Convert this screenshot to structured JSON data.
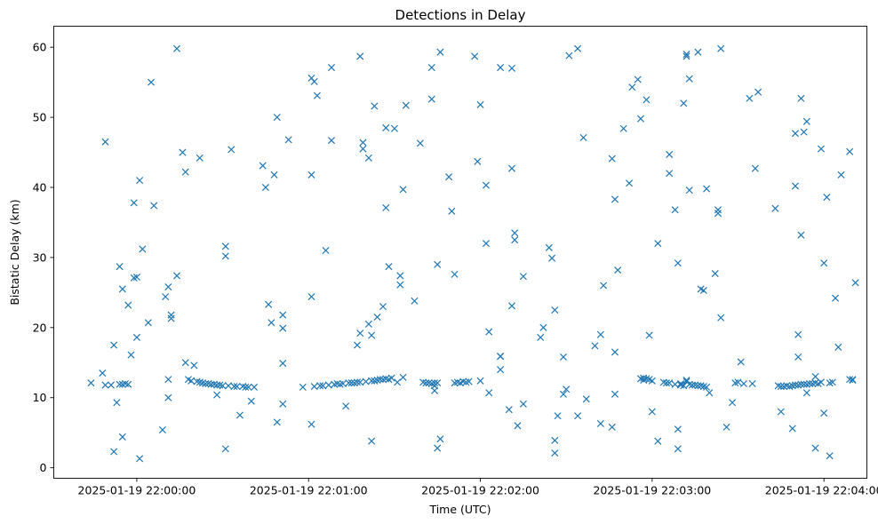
{
  "chart_data": {
    "type": "scatter",
    "title": "Detections in Delay",
    "xlabel": "Time (UTC)",
    "ylabel": "Bistatic Delay (km)",
    "x_unit": "seconds after 2025-01-19 22:00:00 UTC",
    "xlim": [
      -29,
      255
    ],
    "ylim": [
      -1.5,
      63
    ],
    "x_ticks": [
      {
        "value": 0,
        "label": "2025-01-19 22:00:00"
      },
      {
        "value": 60,
        "label": "2025-01-19 22:01:00"
      },
      {
        "value": 120,
        "label": "2025-01-19 22:02:00"
      },
      {
        "value": 180,
        "label": "2025-01-19 22:03:00"
      },
      {
        "value": 240,
        "label": "2025-01-19 22:04:00"
      }
    ],
    "y_ticks": [
      0,
      10,
      20,
      30,
      40,
      50,
      60
    ],
    "marker": "x",
    "color": "#1f77b4",
    "series": [
      {
        "name": "Detections",
        "points": [
          [
            -16,
            12.1
          ],
          [
            -12,
            13.5
          ],
          [
            -11,
            11.8
          ],
          [
            -11,
            46.5
          ],
          [
            -9,
            11.8
          ],
          [
            -8,
            17.5
          ],
          [
            -8,
            2.3
          ],
          [
            -7,
            9.3
          ],
          [
            -6,
            11.9
          ],
          [
            -6,
            28.7
          ],
          [
            -5,
            4.4
          ],
          [
            -5,
            25.5
          ],
          [
            -5,
            11.9
          ],
          [
            -4,
            12.0
          ],
          [
            -3,
            23.2
          ],
          [
            -3,
            11.9
          ],
          [
            -2,
            16.1
          ],
          [
            -1,
            37.8
          ],
          [
            -1,
            27.1
          ],
          [
            0,
            27.2
          ],
          [
            0,
            18.6
          ],
          [
            1,
            41.0
          ],
          [
            1,
            1.3
          ],
          [
            2,
            31.2
          ],
          [
            4,
            20.7
          ],
          [
            5,
            55.0
          ],
          [
            6,
            37.4
          ],
          [
            9,
            5.4
          ],
          [
            10,
            24.4
          ],
          [
            11,
            25.8
          ],
          [
            11,
            12.6
          ],
          [
            11,
            10.0
          ],
          [
            12,
            21.3
          ],
          [
            12,
            21.8
          ],
          [
            14,
            27.4
          ],
          [
            14,
            59.8
          ],
          [
            16,
            45.0
          ],
          [
            17,
            42.2
          ],
          [
            17,
            15.0
          ],
          [
            18,
            12.6
          ],
          [
            19,
            12.4
          ],
          [
            20,
            14.6
          ],
          [
            21,
            12.3
          ],
          [
            22,
            44.2
          ],
          [
            22,
            12.2
          ],
          [
            23,
            12.1
          ],
          [
            24,
            12.0
          ],
          [
            25,
            12.0
          ],
          [
            26,
            11.9
          ],
          [
            27,
            11.9
          ],
          [
            28,
            11.8
          ],
          [
            28,
            10.4
          ],
          [
            29,
            11.8
          ],
          [
            30,
            11.7
          ],
          [
            31,
            2.7
          ],
          [
            31,
            31.6
          ],
          [
            31,
            30.2
          ],
          [
            32,
            11.7
          ],
          [
            33,
            45.4
          ],
          [
            34,
            11.6
          ],
          [
            35,
            11.6
          ],
          [
            36,
            7.5
          ],
          [
            37,
            11.6
          ],
          [
            38,
            11.5
          ],
          [
            39,
            11.5
          ],
          [
            40,
            9.5
          ],
          [
            41,
            11.5
          ],
          [
            44,
            43.1
          ],
          [
            45,
            40.0
          ],
          [
            46,
            23.3
          ],
          [
            47,
            20.7
          ],
          [
            48,
            41.8
          ],
          [
            49,
            50.0
          ],
          [
            49,
            6.5
          ],
          [
            51,
            9.1
          ],
          [
            51,
            21.8
          ],
          [
            51,
            19.9
          ],
          [
            51,
            14.9
          ],
          [
            53,
            46.8
          ],
          [
            58,
            11.5
          ],
          [
            61,
            55.6
          ],
          [
            62,
            55.1
          ],
          [
            61,
            24.4
          ],
          [
            61,
            6.2
          ],
          [
            61,
            41.8
          ],
          [
            62,
            11.6
          ],
          [
            63,
            53.1
          ],
          [
            64,
            11.7
          ],
          [
            65,
            11.7
          ],
          [
            66,
            31.0
          ],
          [
            67,
            11.8
          ],
          [
            68,
            46.7
          ],
          [
            68,
            57.1
          ],
          [
            69,
            11.9
          ],
          [
            70,
            12.0
          ],
          [
            71,
            11.9
          ],
          [
            72,
            12.0
          ],
          [
            73,
            8.8
          ],
          [
            74,
            12.1
          ],
          [
            75,
            12.1
          ],
          [
            76,
            12.1
          ],
          [
            77,
            12.2
          ],
          [
            77,
            17.5
          ],
          [
            78,
            12.2
          ],
          [
            78,
            19.2
          ],
          [
            78,
            58.7
          ],
          [
            79,
            46.4
          ],
          [
            79,
            45.5
          ],
          [
            80,
            12.3
          ],
          [
            81,
            20.5
          ],
          [
            81,
            44.2
          ],
          [
            82,
            12.4
          ],
          [
            82,
            18.9
          ],
          [
            82,
            3.8
          ],
          [
            83,
            12.4
          ],
          [
            83,
            51.6
          ],
          [
            84,
            12.5
          ],
          [
            84,
            21.5
          ],
          [
            85,
            12.6
          ],
          [
            86,
            12.6
          ],
          [
            86,
            23.0
          ],
          [
            87,
            12.7
          ],
          [
            87,
            48.5
          ],
          [
            87,
            37.1
          ],
          [
            88,
            28.7
          ],
          [
            88,
            12.6
          ],
          [
            89,
            12.8
          ],
          [
            90,
            48.4
          ],
          [
            91,
            12.2
          ],
          [
            92,
            26.1
          ],
          [
            92,
            27.4
          ],
          [
            93,
            12.9
          ],
          [
            93,
            39.7
          ],
          [
            94,
            51.7
          ],
          [
            97,
            23.8
          ],
          [
            99,
            46.3
          ],
          [
            100,
            12.2
          ],
          [
            101,
            12.1
          ],
          [
            102,
            12.1
          ],
          [
            103,
            12.0
          ],
          [
            103,
            52.6
          ],
          [
            103,
            57.1
          ],
          [
            104,
            12.1
          ],
          [
            104,
            11.0
          ],
          [
            104,
            11.7
          ],
          [
            105,
            2.8
          ],
          [
            105,
            29.0
          ],
          [
            105,
            12.1
          ],
          [
            106,
            59.3
          ],
          [
            106,
            4.1
          ],
          [
            109,
            41.5
          ],
          [
            110,
            36.6
          ],
          [
            111,
            27.6
          ],
          [
            111,
            12.1
          ],
          [
            112,
            12.2
          ],
          [
            113,
            12.1
          ],
          [
            114,
            12.3
          ],
          [
            115,
            12.2
          ],
          [
            116,
            12.3
          ],
          [
            118,
            58.7
          ],
          [
            119,
            43.7
          ],
          [
            120,
            12.4
          ],
          [
            120,
            51.8
          ],
          [
            122,
            32.0
          ],
          [
            122,
            40.3
          ],
          [
            123,
            10.7
          ],
          [
            123,
            19.4
          ],
          [
            127,
            57.1
          ],
          [
            127,
            15.9
          ],
          [
            127,
            14.0
          ],
          [
            127,
            15.9
          ],
          [
            130,
            8.3
          ],
          [
            131,
            57.0
          ],
          [
            131,
            42.7
          ],
          [
            131,
            23.1
          ],
          [
            132,
            33.5
          ],
          [
            132,
            32.5
          ],
          [
            133,
            6.0
          ],
          [
            135,
            27.3
          ],
          [
            135,
            9.1
          ],
          [
            141,
            18.6
          ],
          [
            142,
            20.0
          ],
          [
            144,
            31.4
          ],
          [
            145,
            29.9
          ],
          [
            146,
            2.1
          ],
          [
            146,
            3.9
          ],
          [
            146,
            22.5
          ],
          [
            147,
            7.4
          ],
          [
            149,
            10.5
          ],
          [
            149,
            15.8
          ],
          [
            150,
            11.2
          ],
          [
            151,
            58.8
          ],
          [
            154,
            59.8
          ],
          [
            154,
            7.4
          ],
          [
            156,
            47.1
          ],
          [
            157,
            9.8
          ],
          [
            160,
            17.4
          ],
          [
            162,
            6.3
          ],
          [
            162,
            19.0
          ],
          [
            163,
            26.0
          ],
          [
            166,
            5.8
          ],
          [
            166,
            44.1
          ],
          [
            167,
            38.3
          ],
          [
            167,
            16.5
          ],
          [
            167,
            10.5
          ],
          [
            168,
            28.2
          ],
          [
            170,
            48.4
          ],
          [
            172,
            40.6
          ],
          [
            173,
            54.3
          ],
          [
            175,
            55.4
          ],
          [
            176,
            12.7
          ],
          [
            176,
            49.8
          ],
          [
            177,
            12.8
          ],
          [
            177,
            12.5
          ],
          [
            178,
            12.7
          ],
          [
            179,
            12.6
          ],
          [
            178,
            52.5
          ],
          [
            179,
            18.9
          ],
          [
            180,
            12.4
          ],
          [
            180,
            8.0
          ],
          [
            182,
            32.0
          ],
          [
            182,
            3.8
          ],
          [
            184,
            12.2
          ],
          [
            185,
            12.1
          ],
          [
            186,
            12.1
          ],
          [
            186,
            42.0
          ],
          [
            186,
            44.7
          ],
          [
            188,
            11.9
          ],
          [
            188,
            36.8
          ],
          [
            189,
            29.2
          ],
          [
            189,
            5.5
          ],
          [
            189,
            2.7
          ],
          [
            190,
            11.8
          ],
          [
            190,
            12.0
          ],
          [
            191,
            52.0
          ],
          [
            191,
            11.7
          ],
          [
            192,
            12.3
          ],
          [
            192,
            12.5
          ],
          [
            192,
            59.0
          ],
          [
            192,
            58.7
          ],
          [
            193,
            11.9
          ],
          [
            193,
            55.5
          ],
          [
            193,
            39.6
          ],
          [
            194,
            11.8
          ],
          [
            195,
            11.8
          ],
          [
            196,
            11.7
          ],
          [
            196,
            59.3
          ],
          [
            197,
            11.7
          ],
          [
            197,
            25.5
          ],
          [
            198,
            25.3
          ],
          [
            198,
            11.6
          ],
          [
            199,
            39.8
          ],
          [
            199,
            11.5
          ],
          [
            200,
            10.7
          ],
          [
            202,
            27.7
          ],
          [
            203,
            36.3
          ],
          [
            203,
            36.8
          ],
          [
            204,
            59.8
          ],
          [
            204,
            21.4
          ],
          [
            206,
            5.8
          ],
          [
            208,
            9.3
          ],
          [
            209,
            12.1
          ],
          [
            210,
            12.2
          ],
          [
            211,
            15.1
          ],
          [
            212,
            12.0
          ],
          [
            214,
            52.7
          ],
          [
            215,
            12.0
          ],
          [
            216,
            42.7
          ],
          [
            217,
            53.6
          ],
          [
            223,
            37.0
          ],
          [
            224,
            11.7
          ],
          [
            225,
            8.0
          ],
          [
            225,
            11.6
          ],
          [
            226,
            11.6
          ],
          [
            227,
            11.7
          ],
          [
            228,
            11.6
          ],
          [
            229,
            11.7
          ],
          [
            229,
            5.6
          ],
          [
            230,
            11.8
          ],
          [
            230,
            47.7
          ],
          [
            230,
            40.2
          ],
          [
            231,
            15.8
          ],
          [
            231,
            11.8
          ],
          [
            231,
            19.0
          ],
          [
            232,
            52.7
          ],
          [
            232,
            11.9
          ],
          [
            232,
            33.2
          ],
          [
            233,
            11.9
          ],
          [
            233,
            47.9
          ],
          [
            234,
            11.9
          ],
          [
            234,
            10.7
          ],
          [
            234,
            49.4
          ],
          [
            235,
            12.0
          ],
          [
            236,
            12.0
          ],
          [
            237,
            12.1
          ],
          [
            237,
            13.0
          ],
          [
            237,
            2.8
          ],
          [
            238,
            12.0
          ],
          [
            239,
            12.2
          ],
          [
            239,
            45.5
          ],
          [
            240,
            29.2
          ],
          [
            240,
            7.8
          ],
          [
            241,
            38.6
          ],
          [
            242,
            12.1
          ],
          [
            242,
            1.7
          ],
          [
            243,
            12.2
          ],
          [
            244,
            24.2
          ],
          [
            245,
            17.2
          ],
          [
            246,
            41.8
          ],
          [
            249,
            45.1
          ],
          [
            249,
            12.6
          ],
          [
            250,
            12.5
          ],
          [
            250,
            12.6
          ],
          [
            251,
            26.4
          ]
        ]
      }
    ]
  }
}
